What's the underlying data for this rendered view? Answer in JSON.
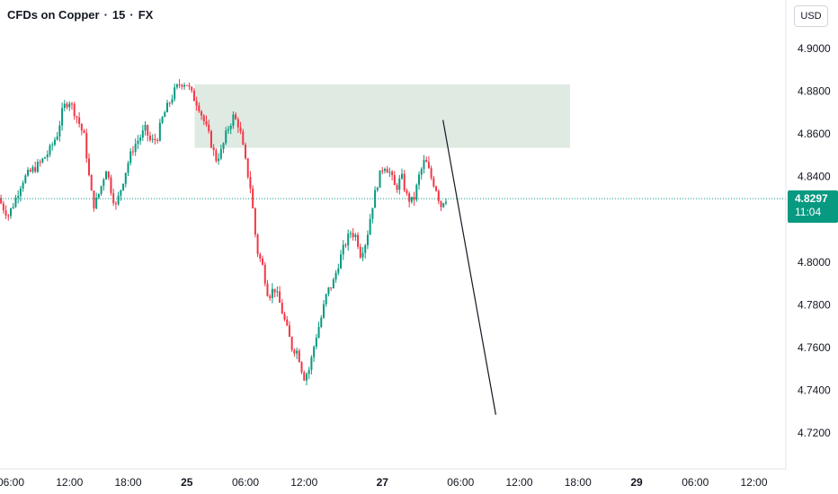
{
  "header": {
    "symbol": "CFDs on Copper",
    "interval": "15",
    "exchange": "FX",
    "separator": "·"
  },
  "currency_button": "USD",
  "last_price": {
    "value": "4.8297",
    "countdown": "11:04"
  },
  "colors": {
    "up": "#089981",
    "down": "#f23645",
    "zone_fill": "#dbe8df",
    "current_price_line": "#089981",
    "axis_text": "#131722",
    "grid": "#f0f3fa"
  },
  "chart_data": {
    "type": "candlestick",
    "symbol": "CFDs on Copper",
    "timeframe": "15",
    "y_axis": {
      "ticks": [
        "4.9000",
        "4.8800",
        "4.8600",
        "4.8400",
        "4.8200",
        "4.8000",
        "4.7800",
        "4.7600",
        "4.7400",
        "4.7200"
      ],
      "range": [
        4.7145,
        4.913
      ],
      "position": "right"
    },
    "x_axis": {
      "ticks": [
        "06:00",
        "12:00",
        "18:00",
        "25",
        "06:00",
        "12:00",
        "27",
        "06:00",
        "12:00",
        "18:00",
        "29",
        "06:00",
        "12:00"
      ],
      "bold_ticks": [
        "25",
        "27",
        "29"
      ],
      "hours_from_first_tick": [
        0,
        6,
        12,
        18,
        24,
        30,
        38,
        46,
        52,
        58,
        64,
        70,
        76
      ]
    },
    "current_price": 4.8297,
    "price_path": [
      [
        -1.0,
        4.83
      ],
      [
        -0.6,
        4.826
      ],
      [
        0.0,
        4.822
      ],
      [
        0.6,
        4.828
      ],
      [
        1.4,
        4.838
      ],
      [
        2.2,
        4.842
      ],
      [
        3.2,
        4.846
      ],
      [
        4.2,
        4.852
      ],
      [
        5.0,
        4.86
      ],
      [
        5.6,
        4.872
      ],
      [
        6.2,
        4.876
      ],
      [
        7.0,
        4.868
      ],
      [
        7.8,
        4.858
      ],
      [
        8.4,
        4.834
      ],
      [
        8.8,
        4.826
      ],
      [
        9.4,
        4.834
      ],
      [
        10.0,
        4.844
      ],
      [
        10.6,
        4.832
      ],
      [
        11.0,
        4.826
      ],
      [
        11.6,
        4.836
      ],
      [
        12.2,
        4.846
      ],
      [
        12.8,
        4.854
      ],
      [
        13.4,
        4.858
      ],
      [
        14.0,
        4.862
      ],
      [
        14.6,
        4.856
      ],
      [
        15.2,
        4.858
      ],
      [
        15.8,
        4.868
      ],
      [
        16.4,
        4.874
      ],
      [
        17.0,
        4.88
      ],
      [
        17.6,
        4.884
      ],
      [
        18.2,
        4.884
      ],
      [
        18.8,
        4.878
      ],
      [
        19.4,
        4.874
      ],
      [
        20.0,
        4.866
      ],
      [
        20.6,
        4.858
      ],
      [
        21.2,
        4.848
      ],
      [
        21.8,
        4.852
      ],
      [
        22.4,
        4.862
      ],
      [
        23.0,
        4.868
      ],
      [
        23.6,
        4.864
      ],
      [
        24.2,
        4.848
      ],
      [
        24.8,
        4.834
      ],
      [
        25.4,
        4.806
      ],
      [
        26.0,
        4.798
      ],
      [
        26.6,
        4.784
      ],
      [
        27.2,
        4.788
      ],
      [
        27.8,
        4.78
      ],
      [
        28.4,
        4.77
      ],
      [
        29.0,
        4.76
      ],
      [
        29.6,
        4.758
      ],
      [
        30.2,
        4.746
      ],
      [
        30.8,
        4.75
      ],
      [
        31.4,
        4.764
      ],
      [
        32.0,
        4.774
      ],
      [
        32.6,
        4.786
      ],
      [
        33.2,
        4.79
      ],
      [
        33.8,
        4.8
      ],
      [
        34.4,
        4.808
      ],
      [
        35.0,
        4.814
      ],
      [
        35.6,
        4.812
      ],
      [
        36.0,
        4.804
      ],
      [
        36.6,
        4.81
      ],
      [
        37.2,
        4.826
      ],
      [
        37.8,
        4.838
      ],
      [
        38.4,
        4.846
      ],
      [
        39.0,
        4.842
      ],
      [
        39.6,
        4.834
      ],
      [
        40.2,
        4.84
      ],
      [
        40.8,
        4.83
      ],
      [
        41.4,
        4.828
      ],
      [
        42.0,
        4.84
      ],
      [
        42.6,
        4.848
      ],
      [
        43.2,
        4.84
      ],
      [
        43.8,
        4.834
      ],
      [
        44.2,
        4.826
      ],
      [
        44.6,
        4.83
      ]
    ],
    "resistance_zone": {
      "price_top": 4.8832,
      "price_bottom": 4.8535,
      "hour_start": 18.8,
      "hour_end": 57.2
    },
    "projection_line": {
      "from": [
        44.2,
        4.8665
      ],
      "to": [
        49.6,
        4.7285
      ]
    }
  }
}
